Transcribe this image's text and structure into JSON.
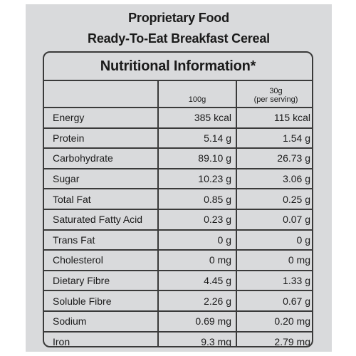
{
  "header": {
    "line1": "Proprietary Food",
    "line2": "Ready-To-Eat Breakfast Cereal"
  },
  "table": {
    "heading": "Nutritional Information*",
    "col_100g": "100g",
    "col_serving_top": "30g",
    "col_serving_bottom": "(per serving)",
    "rows": [
      {
        "name": "Energy",
        "per100": "385 kcal",
        "perServing": "115 kcal"
      },
      {
        "name": "Protein",
        "per100": "5.14 g",
        "perServing": "1.54 g"
      },
      {
        "name": "Carbohydrate",
        "per100": "89.10 g",
        "perServing": "26.73 g"
      },
      {
        "name": "Sugar",
        "per100": "10.23 g",
        "perServing": "3.06 g"
      },
      {
        "name": "Total Fat",
        "per100": "0.85 g",
        "perServing": "0.25 g"
      },
      {
        "name": "Saturated Fatty Acid",
        "per100": "0.23 g",
        "perServing": "0.07 g"
      },
      {
        "name": "Trans Fat",
        "per100": "0 g",
        "perServing": "0 g"
      },
      {
        "name": "Cholesterol",
        "per100": "0 mg",
        "perServing": "0 mg"
      },
      {
        "name": "Dietary Fibre",
        "per100": "4.45 g",
        "perServing": "1.33 g"
      },
      {
        "name": "Soluble Fibre",
        "per100": "2.26 g",
        "perServing": "0.67 g"
      },
      {
        "name": "Sodium",
        "per100": "0.69 mg",
        "perServing": "0.20 mg"
      },
      {
        "name": "Iron",
        "per100": "9.3 mg",
        "perServing": "2.79 mg"
      }
    ]
  }
}
